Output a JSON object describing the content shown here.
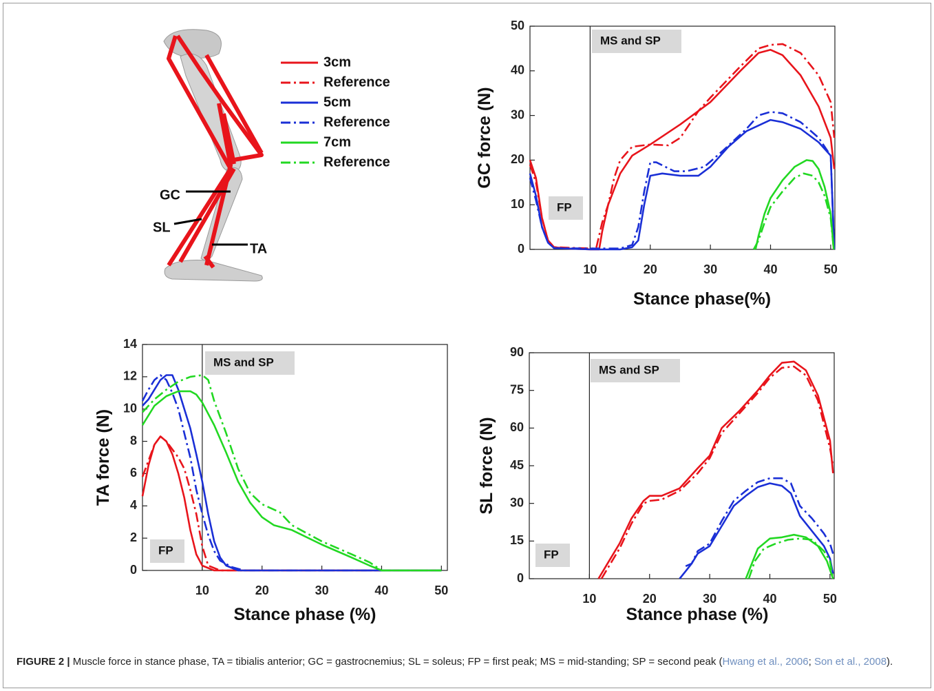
{
  "chart_data": [
    {
      "type": "line",
      "ylabel": "GC force (N)",
      "xlabel": "Stance phase(%)",
      "xlim": [
        0,
        50.7
      ],
      "xticks": [
        10,
        20,
        30,
        40,
        50
      ],
      "ylim": [
        0,
        50
      ],
      "yticks": [
        0,
        10,
        20,
        30,
        40,
        50
      ],
      "divider_x": 10,
      "annotations": [
        "MS and SP",
        "FP"
      ],
      "series": [
        {
          "name": "3cm",
          "color": "#e8141b",
          "dash": "solid",
          "x": [
            0,
            1,
            2,
            3,
            4,
            6,
            10,
            11.5,
            12,
            13,
            15,
            17,
            20,
            25,
            30,
            35,
            38,
            40,
            42,
            45,
            48,
            50,
            50.6
          ],
          "values": [
            20,
            16,
            7,
            2,
            0.5,
            0.2,
            0,
            0,
            4,
            10,
            17,
            21,
            23.5,
            28,
            33,
            40,
            44,
            44.7,
            43.5,
            39,
            32,
            25,
            18
          ]
        },
        {
          "name": "Reference",
          "color": "#e8141b",
          "dash": "dashdot",
          "x": [
            0,
            1,
            2,
            3,
            4,
            10,
            11,
            12,
            13,
            14,
            15,
            17,
            20,
            23,
            25,
            28,
            30,
            35,
            38,
            40,
            42,
            45,
            48,
            50,
            50.6
          ],
          "values": [
            19,
            15,
            7,
            2,
            0.5,
            0.2,
            0.2,
            6,
            10,
            16,
            20,
            23,
            23.5,
            23.3,
            25,
            31,
            34,
            41,
            45,
            45.8,
            46,
            44,
            39,
            33,
            25
          ]
        },
        {
          "name": "5cm",
          "color": "#1a2fd6",
          "dash": "solid",
          "x": [
            0,
            1,
            2,
            3,
            4,
            10,
            15,
            17,
            18,
            19,
            20,
            22,
            25,
            28,
            30,
            33,
            36,
            40,
            42,
            45,
            48,
            50,
            50.6
          ],
          "values": [
            17,
            12,
            5,
            1.5,
            0.3,
            0,
            0,
            0.5,
            2,
            10,
            16.5,
            17,
            16.5,
            16.5,
            18.5,
            23,
            26.5,
            29,
            28.5,
            27,
            24,
            21,
            0
          ]
        },
        {
          "name": "Reference",
          "color": "#1a2fd6",
          "dash": "dashdot",
          "x": [
            0,
            1,
            2,
            3,
            4,
            10,
            15,
            17,
            18,
            19,
            20,
            21,
            24,
            26,
            29,
            32,
            36,
            38,
            40,
            42,
            45,
            48,
            50,
            50.6
          ],
          "values": [
            16,
            11,
            5,
            1.5,
            0.3,
            0.2,
            0.2,
            1,
            5,
            13,
            19.5,
            19.5,
            17.5,
            17.5,
            18.5,
            22,
            27,
            30,
            30.8,
            30.5,
            28.5,
            25,
            21,
            0
          ]
        },
        {
          "name": "7cm",
          "color": "#22d822",
          "dash": "solid",
          "x": [
            37.5,
            38,
            39,
            40,
            42,
            44,
            46,
            47,
            48,
            49,
            50,
            50.5
          ],
          "values": [
            0,
            3,
            8,
            11.5,
            15.5,
            18.5,
            20,
            19.8,
            18,
            14,
            8,
            0
          ]
        },
        {
          "name": "Reference",
          "color": "#22d822",
          "dash": "dashdot",
          "x": [
            37.2,
            38,
            39,
            40,
            42,
            44,
            45.5,
            47,
            48,
            49,
            50,
            50.5
          ],
          "values": [
            0,
            2,
            6,
            9.5,
            13,
            16,
            17,
            16.5,
            15,
            12,
            7,
            0
          ]
        }
      ]
    },
    {
      "type": "line",
      "ylabel": "TA force (N)",
      "xlabel": "Stance phase (%)",
      "xlim": [
        0,
        51
      ],
      "xticks": [
        10,
        20,
        30,
        40,
        50
      ],
      "ylim": [
        0,
        14
      ],
      "yticks": [
        0,
        2,
        4,
        6,
        8,
        10,
        12,
        14
      ],
      "divider_x": 10,
      "annotations": [
        "MS and SP",
        "FP"
      ],
      "series": [
        {
          "name": "3cm",
          "color": "#e8141b",
          "dash": "solid",
          "x": [
            0,
            1,
            2,
            3,
            4,
            5,
            6,
            7,
            8,
            9,
            10,
            12,
            50
          ],
          "values": [
            4.6,
            6.5,
            7.8,
            8.3,
            8.0,
            7.2,
            6,
            4.5,
            2.5,
            1,
            0.3,
            0,
            0
          ]
        },
        {
          "name": "Reference",
          "color": "#e8141b",
          "dash": "dashdot",
          "x": [
            0,
            1,
            2,
            3,
            4,
            5,
            6,
            7,
            8,
            9,
            10,
            11,
            13,
            50
          ],
          "values": [
            5.8,
            6.8,
            7.8,
            8.3,
            8.0,
            7.5,
            7.0,
            6.3,
            5,
            3.5,
            1.5,
            0.3,
            0,
            0
          ]
        },
        {
          "name": "5cm",
          "color": "#1a2fd6",
          "dash": "solid",
          "x": [
            0,
            1,
            2,
            3,
            4,
            5,
            6,
            7,
            8,
            9,
            10,
            11,
            12,
            13,
            14,
            16,
            50
          ],
          "values": [
            10.2,
            10.6,
            11.2,
            11.8,
            12.1,
            12.1,
            11.2,
            10,
            8.8,
            7.2,
            5.5,
            3.5,
            1.8,
            0.8,
            0.3,
            0,
            0
          ]
        },
        {
          "name": "Reference",
          "color": "#1a2fd6",
          "dash": "dashdot",
          "x": [
            0,
            1,
            2,
            3,
            4,
            5,
            6,
            7,
            8,
            9,
            10,
            11,
            12,
            13,
            15,
            17,
            50
          ],
          "values": [
            10.5,
            11.2,
            11.8,
            12.1,
            11.8,
            11,
            10,
            8.5,
            7,
            5,
            3.5,
            2.2,
            1.2,
            0.6,
            0.2,
            0,
            0
          ]
        },
        {
          "name": "7cm",
          "color": "#22d822",
          "dash": "solid",
          "x": [
            0,
            2,
            4,
            6,
            8,
            9,
            10,
            12,
            14,
            16,
            18,
            20,
            22,
            25,
            30,
            35,
            38,
            40,
            50
          ],
          "values": [
            9,
            10.2,
            10.8,
            11.1,
            11.1,
            10.9,
            10.4,
            9,
            7.3,
            5.5,
            4.2,
            3.3,
            2.8,
            2.5,
            1.6,
            0.8,
            0.3,
            0,
            0
          ]
        },
        {
          "name": "Reference",
          "color": "#22d822",
          "dash": "dashdot",
          "x": [
            0,
            2,
            4,
            6,
            8,
            10,
            11,
            12,
            14,
            16,
            18,
            20,
            23,
            25,
            30,
            35,
            38,
            40,
            50
          ],
          "values": [
            9.8,
            10.6,
            11.2,
            11.7,
            12.0,
            12.1,
            11.8,
            10.5,
            8.5,
            6.3,
            4.8,
            4.1,
            3.6,
            2.8,
            1.8,
            1.0,
            0.5,
            0,
            0
          ]
        }
      ]
    },
    {
      "type": "line",
      "ylabel": "SL force (N)",
      "xlabel": "Stance phase (%)",
      "xlim": [
        0,
        50.7
      ],
      "xticks": [
        10,
        20,
        30,
        40,
        50
      ],
      "ylim": [
        0,
        90
      ],
      "yticks": [
        0,
        15,
        30,
        45,
        60,
        75,
        90
      ],
      "divider_x": 10,
      "annotations": [
        "MS and SP",
        "FP"
      ],
      "series": [
        {
          "name": "3cm",
          "color": "#e8141b",
          "dash": "solid",
          "x": [
            11.5,
            13,
            15,
            17,
            19,
            20,
            22,
            25,
            28,
            30,
            32,
            35,
            38,
            40,
            42,
            44,
            46,
            48,
            50,
            50.5
          ],
          "values": [
            0,
            6,
            14,
            24,
            31,
            33,
            33,
            36,
            44,
            49,
            60,
            67,
            75,
            81,
            86,
            86.5,
            83,
            73,
            55,
            42
          ]
        },
        {
          "name": "Reference",
          "color": "#e8141b",
          "dash": "dashdot",
          "x": [
            12,
            13,
            15,
            17,
            19,
            20,
            22,
            25,
            28,
            30,
            32,
            35,
            38,
            40,
            42,
            44,
            46,
            48,
            50,
            50.5
          ],
          "values": [
            0,
            4,
            12,
            22,
            30,
            31,
            31.5,
            35,
            42,
            48,
            58,
            66,
            74,
            80,
            84,
            84.5,
            81,
            71,
            52,
            45
          ]
        },
        {
          "name": "5cm",
          "color": "#1a2fd6",
          "dash": "solid",
          "x": [
            25,
            26,
            27,
            28,
            30,
            32,
            34,
            36,
            38,
            40,
            42,
            43.5,
            45,
            47,
            49,
            50,
            50.5
          ],
          "values": [
            0,
            3,
            6,
            10,
            13,
            21,
            29,
            33,
            36.5,
            38,
            37,
            34,
            25,
            19,
            13,
            8,
            2
          ]
        },
        {
          "name": "Reference",
          "color": "#1a2fd6",
          "dash": "dashdot",
          "x": [
            26,
            27,
            28,
            30,
            32,
            34,
            36,
            38,
            40,
            42,
            43.5,
            45,
            47,
            49,
            50,
            50.5
          ],
          "values": [
            5,
            6,
            11,
            14,
            23,
            31,
            35,
            38.5,
            40,
            40,
            38,
            29,
            24,
            18,
            14,
            10
          ]
        },
        {
          "name": "7cm",
          "color": "#22d822",
          "dash": "solid",
          "x": [
            36,
            37,
            38,
            40,
            42,
            44,
            46,
            48,
            49.5,
            50.5
          ],
          "values": [
            0,
            6,
            12,
            16,
            16.5,
            17.5,
            16.5,
            13,
            7,
            0
          ]
        },
        {
          "name": "Reference",
          "color": "#22d822",
          "dash": "dashdot",
          "x": [
            36.5,
            37.5,
            39,
            41,
            43,
            45,
            47,
            49,
            50,
            50.5
          ],
          "values": [
            0,
            7,
            12,
            14,
            15.5,
            16,
            15.5,
            11,
            7,
            0
          ]
        }
      ]
    }
  ],
  "illustration": {
    "labels": [
      "GC",
      "SL",
      "TA"
    ]
  },
  "caption": {
    "label": "FIGURE 2 |",
    "body": " Muscle force in stance phase, TA = tibialis anterior; GC = gastrocnemius; SL = soleus; FP = first peak; MS = mid-standing; SP = second peak (",
    "ref1": "Hwang et al., 2006",
    "sep": "; ",
    "ref2": "Son et al., 2008",
    "end": ")."
  }
}
